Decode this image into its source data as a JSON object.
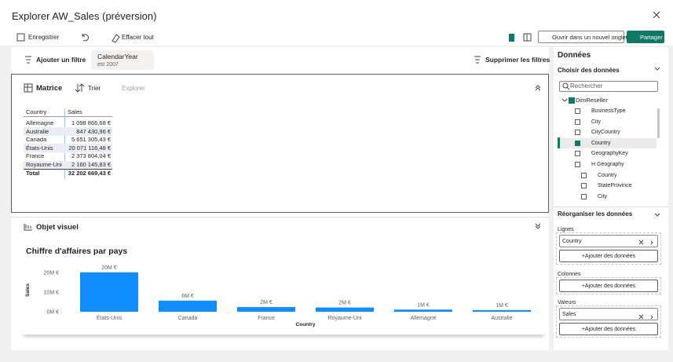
{
  "header": {
    "title": "Explorer AW_Sales (préversion)"
  },
  "toolbar": {
    "save": "Enregistrer",
    "clear_all": "Effacer tout",
    "open_new_tab": "Ouvrir dans un nouvel onglet",
    "share": "Partager"
  },
  "filters": {
    "add": "Ajouter un filtre",
    "active": {
      "field": "CalendarYear",
      "condition": "est 2007"
    },
    "clear": "Supprimer les filtres"
  },
  "matrix": {
    "title": "Matrice",
    "sort": "Trier",
    "explore": "Explorer",
    "columns": [
      "Country",
      "Sales"
    ],
    "rows": [
      [
        "Allemagne",
        "1 098 866,68 €"
      ],
      [
        "Australie",
        "847 430,96 €"
      ],
      [
        "Canada",
        "5 651 305,43 €"
      ],
      [
        "États-Unis",
        "20 071 116,48 €"
      ],
      [
        "France",
        "2 373 804,04 €"
      ],
      [
        "Royaume-Uni",
        "2 160 145,83 €"
      ]
    ],
    "total": [
      "Total",
      "32 202 669,43 €"
    ]
  },
  "visual": {
    "title": "Objet visuel"
  },
  "chart_data": {
    "type": "bar",
    "title": "Chiffre d'affaires par pays",
    "x_label": "Country",
    "y_label": "Sales",
    "categories": [
      "États-Unis",
      "Canada",
      "France",
      "Royaume-Uni",
      "Allemagne",
      "Australie"
    ],
    "values": [
      20071116.48,
      5651305.43,
      2373804.04,
      2160145.83,
      1098866.68,
      847430.96
    ],
    "value_labels": [
      "20M €",
      "6M €",
      "2M €",
      "2M €",
      "1M €",
      "1M €"
    ],
    "color": "#118dff",
    "ylim": [
      0,
      22000000
    ],
    "yticks": [
      {
        "value": 0,
        "label": "0M €"
      },
      {
        "value": 10000000,
        "label": "10M €"
      },
      {
        "value": 20000000,
        "label": "20M €"
      }
    ],
    "grid": false
  },
  "data_pane": {
    "title": "Données",
    "choose": "Choisir des données",
    "search_placeholder": "Rechercher",
    "table": "DimReseller",
    "fields": [
      {
        "label": "BusinessType",
        "checked": false
      },
      {
        "label": "City",
        "checked": false
      },
      {
        "label": "CityCountry",
        "checked": false
      },
      {
        "label": "Country",
        "checked": true
      },
      {
        "label": "GeographyKey",
        "checked": false
      },
      {
        "label": "H Geography",
        "checked": false,
        "children": [
          {
            "label": "Country",
            "checked": false
          },
          {
            "label": "StateProvince",
            "checked": false
          },
          {
            "label": "City",
            "checked": false
          }
        ]
      }
    ],
    "arrange": "Réorganiser les données",
    "rows": {
      "label": "Lignes",
      "fields": [
        "Country"
      ],
      "add": "+Ajouter des données"
    },
    "columns": {
      "label": "Colonnes",
      "add": "+Ajouter des données"
    },
    "values": {
      "label": "Valeurs",
      "fields": [
        "Sales"
      ],
      "add": "+Ajouter des données"
    }
  }
}
